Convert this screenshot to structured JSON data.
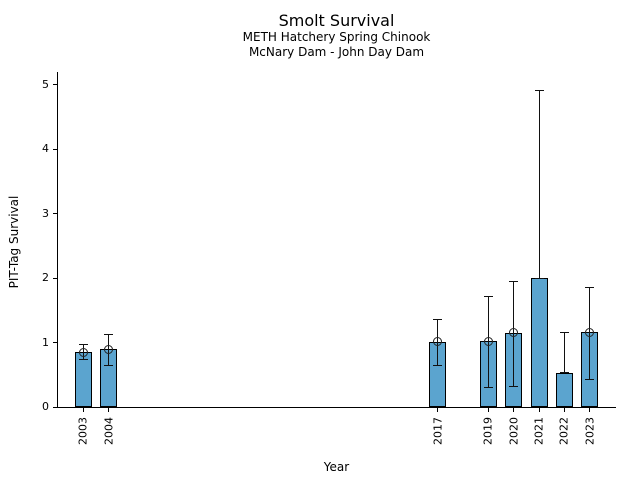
{
  "figure": {
    "title": "Smolt Survival",
    "subtitle1": "METH Hatchery Spring Chinook",
    "subtitle2": "McNary Dam - John Day Dam"
  },
  "chart_data": {
    "type": "bar",
    "title": "Smolt Survival",
    "subtitles": [
      "METH Hatchery Spring Chinook",
      "McNary Dam - John Day Dam"
    ],
    "xlabel": "Year",
    "ylabel": "PIT-Tag Survival",
    "legend": "none",
    "grid": false,
    "xlim": [
      2002,
      2024
    ],
    "ylim": [
      0,
      5.2
    ],
    "yticks": [
      0,
      1,
      2,
      3,
      4,
      5
    ],
    "categories": [
      2003,
      2004,
      2017,
      2019,
      2020,
      2021,
      2022,
      2023
    ],
    "values": [
      0.85,
      0.9,
      1.01,
      1.02,
      1.15,
      2.0,
      0.53,
      1.16
    ],
    "error_low": [
      0.73,
      0.65,
      0.64,
      0.31,
      0.32,
      2.0,
      0.53,
      0.42
    ],
    "error_high": [
      0.97,
      1.12,
      1.36,
      1.72,
      1.95,
      4.91,
      1.16,
      1.86
    ],
    "point_markers": [
      true,
      true,
      true,
      true,
      true,
      false,
      false,
      true
    ],
    "bar_color": "#5BA4CF",
    "bar_edge_color": "#000000",
    "error_color": "#111111"
  }
}
